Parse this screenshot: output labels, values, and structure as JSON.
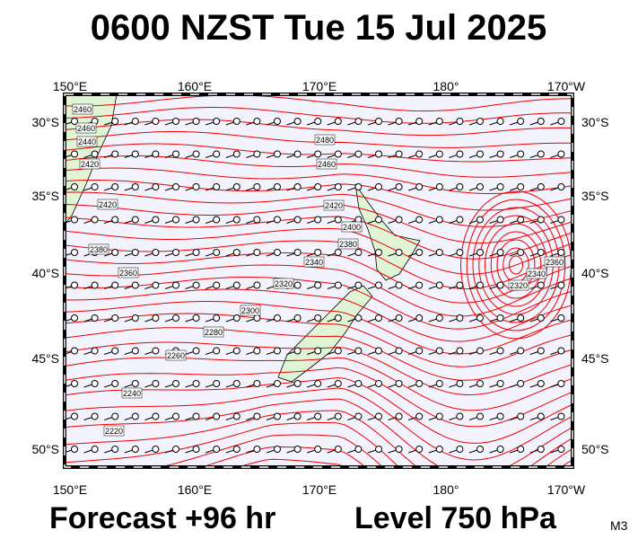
{
  "header": {
    "title": "0600 NZST Tue 15 Jul 2025"
  },
  "map": {
    "top_labels": [
      "150°E",
      "160°E",
      "170°E",
      "180°",
      "170°W"
    ],
    "bottom_labels": [
      "150°E",
      "160°E",
      "170°E",
      "180°",
      "170°W"
    ],
    "left_labels": [
      "30°S",
      "35°S",
      "40°S",
      "45°S",
      "50°S"
    ],
    "right_labels": [
      "30°S",
      "35°S",
      "40°S",
      "45°S",
      "50°S"
    ],
    "contour_labels": [
      "2460",
      "2460",
      "2440",
      "2420",
      "2420",
      "2380",
      "2360",
      "2480",
      "2460",
      "2420",
      "2400",
      "2380",
      "2340",
      "2320",
      "2300",
      "2280",
      "2260",
      "2240",
      "2220",
      "2320",
      "2340",
      "2360"
    ]
  },
  "footer": {
    "forecast": "Forecast +96 hr",
    "level": "Level 750 hPa",
    "model": "M3"
  }
}
